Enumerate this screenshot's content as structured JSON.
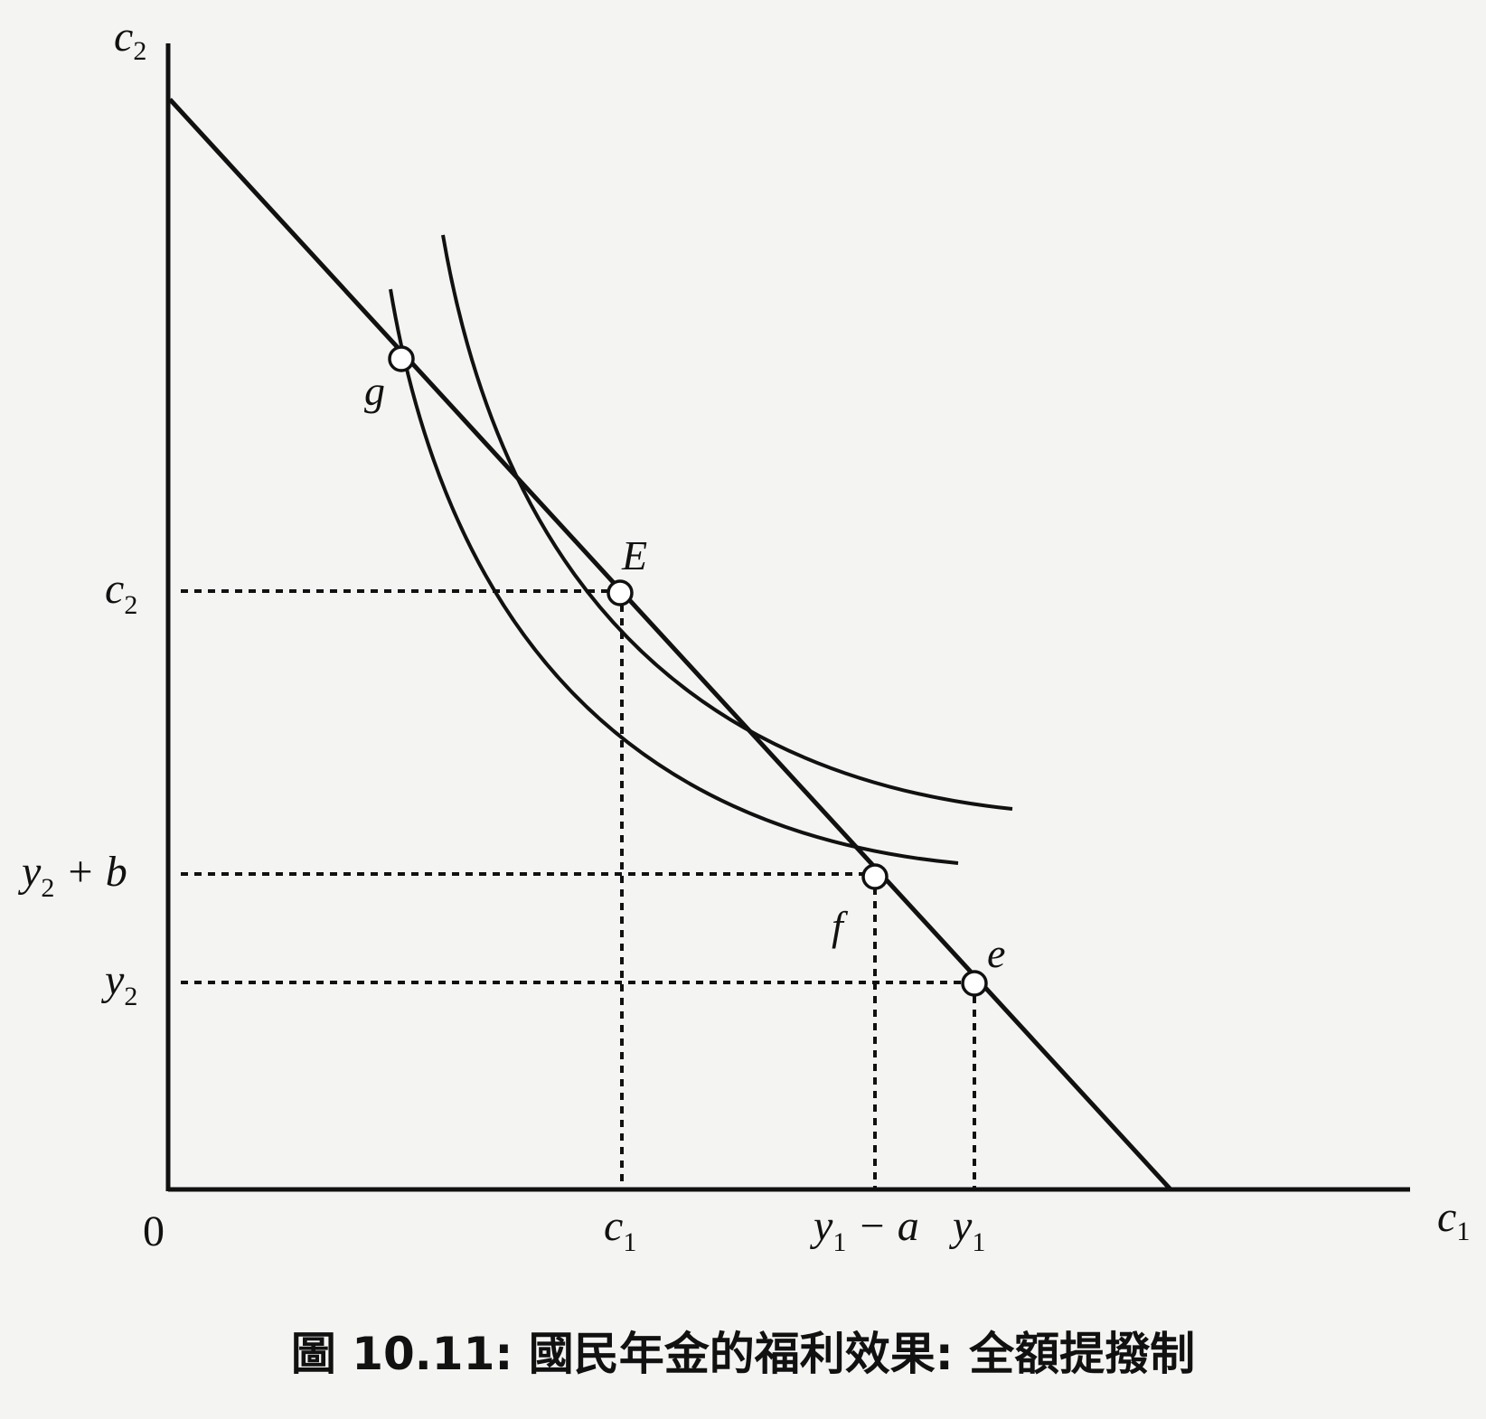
{
  "diagram": {
    "type": "intertemporal-consumption",
    "axes": {
      "x_label": {
        "base": "c",
        "sub": "1"
      },
      "y_label": {
        "base": "c",
        "sub": "2"
      },
      "origin_label": "0"
    },
    "x_ticks": [
      {
        "base": "c",
        "sub": "1",
        "rest": ""
      },
      {
        "base": "y",
        "sub": "1",
        "rest": " − a"
      },
      {
        "base": "y",
        "sub": "1",
        "rest": ""
      }
    ],
    "y_ticks": [
      {
        "base": "c",
        "sub": "2",
        "rest": ""
      },
      {
        "base": "y",
        "sub": "2",
        "rest": " + b"
      },
      {
        "base": "y",
        "sub": "2",
        "rest": ""
      }
    ],
    "points": [
      {
        "label": "g"
      },
      {
        "label": "E"
      },
      {
        "label": "f"
      },
      {
        "label": "e"
      }
    ],
    "curves": [
      "budget-line",
      "indifference-curve-lower",
      "indifference-curve-upper"
    ]
  },
  "caption": "圖 10.11: 國民年金的福利效果: 全額提撥制",
  "colors": {
    "ink": "#111111",
    "paper": "#f4f4f2"
  }
}
